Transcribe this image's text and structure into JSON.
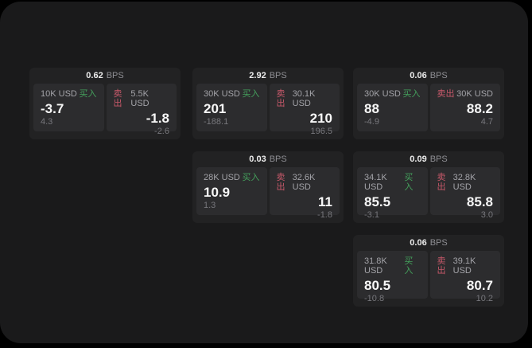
{
  "labels": {
    "bps_unit": "BPS",
    "buy": "买入",
    "sell": "卖出"
  },
  "colors": {
    "outer_background": "#000000",
    "surface": "#1a1a1b",
    "card": "#222223",
    "tile": "#2c2c2e",
    "buy_green": "#44a05c",
    "sell_red": "#c8596a",
    "price_text": "#f7f7f7",
    "muted_text": "#8e8e93"
  },
  "cards": [
    {
      "bps": "0.62",
      "buy": {
        "amount": "10K USD",
        "price": "-3.7",
        "change": "4.3"
      },
      "sell": {
        "amount": "5.5K USD",
        "price": "-1.8",
        "change": "-2.6"
      }
    },
    {
      "bps": "2.92",
      "buy": {
        "amount": "30K USD",
        "price": "201",
        "change": "-188.1"
      },
      "sell": {
        "amount": "30.1K USD",
        "price": "210",
        "change": "196.5"
      }
    },
    {
      "bps": "0.06",
      "buy": {
        "amount": "30K USD",
        "price": "88",
        "change": "-4.9"
      },
      "sell": {
        "amount": "30K USD",
        "price": "88.2",
        "change": "4.7"
      }
    },
    {
      "bps": "0.03",
      "buy": {
        "amount": "28K USD",
        "price": "10.9",
        "change": "1.3"
      },
      "sell": {
        "amount": "32.6K USD",
        "price": "11",
        "change": "-1.8"
      }
    },
    {
      "bps": "0.09",
      "buy": {
        "amount": "34.1K USD",
        "price": "85.5",
        "change": "-3.1"
      },
      "sell": {
        "amount": "32.8K USD",
        "price": "85.8",
        "change": "3.0"
      }
    },
    {
      "bps": "0.06",
      "buy": {
        "amount": "31.8K USD",
        "price": "80.5",
        "change": "-10.8"
      },
      "sell": {
        "amount": "39.1K USD",
        "price": "80.7",
        "change": "10.2"
      }
    }
  ]
}
